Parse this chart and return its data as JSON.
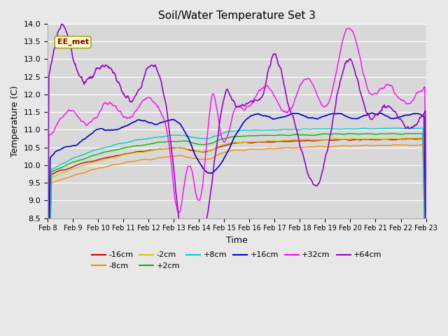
{
  "title": "Soil/Water Temperature Set 3",
  "xlabel": "Time",
  "ylabel": "Temperature (C)",
  "ylim": [
    8.5,
    14.0
  ],
  "yticks": [
    8.5,
    9.0,
    9.5,
    10.0,
    10.5,
    11.0,
    11.5,
    12.0,
    12.5,
    13.0,
    13.5,
    14.0
  ],
  "annotation": "EE_met",
  "bg_color": "#e0e0e0",
  "series": {
    "-16cm": {
      "color": "#cc0000",
      "lw": 1.0
    },
    "-8cm": {
      "color": "#ff8800",
      "lw": 1.0
    },
    "-2cm": {
      "color": "#cccc00",
      "lw": 1.0
    },
    "+2cm": {
      "color": "#00bb00",
      "lw": 1.0
    },
    "+8cm": {
      "color": "#00cccc",
      "lw": 1.0
    },
    "+16cm": {
      "color": "#0000cc",
      "lw": 1.2
    },
    "+32cm": {
      "color": "#ff00ff",
      "lw": 1.0
    },
    "+64cm": {
      "color": "#9900cc",
      "lw": 1.2
    }
  },
  "xtick_labels": [
    "Feb 8",
    "Feb 9",
    "Feb 10",
    "Feb 11",
    "Feb 12",
    "Feb 13",
    "Feb 14",
    "Feb 15",
    "Feb 16",
    "Feb 17",
    "Feb 18",
    "Feb 19",
    "Feb 20",
    "Feb 21",
    "Feb 22",
    "Feb 23"
  ]
}
